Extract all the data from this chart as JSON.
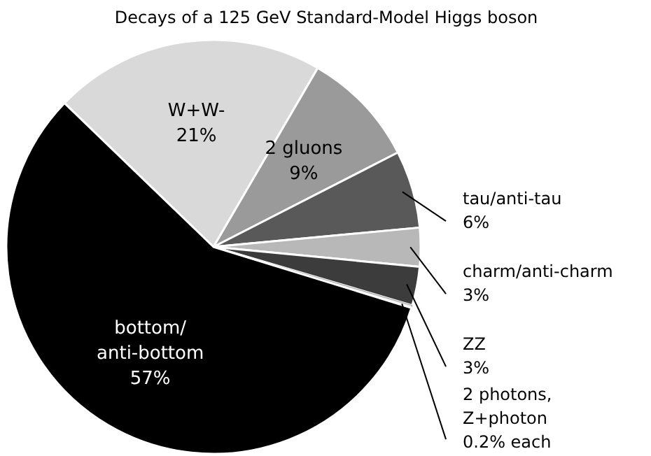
{
  "chart_data": {
    "type": "pie",
    "title": "Decays of a 125 GeV Standard-Model Higgs boson",
    "categories": [
      "W+W-",
      "2 gluons",
      "tau/anti-tau",
      "charm/anti-charm",
      "ZZ",
      "2 photons,\nZ+photon",
      "bottom/\nanti-bottom"
    ],
    "values": [
      21,
      9,
      6,
      3,
      3,
      0.2,
      57
    ],
    "value_labels": [
      "21%",
      "9%",
      "6%",
      "3%",
      "3%",
      "0.2% each",
      "57%"
    ],
    "colors": [
      "#d9d9d9",
      "#9a9a9a",
      "#595959",
      "#b8b8b8",
      "#3c3c3c",
      "#e6e6e6",
      "#000000"
    ]
  }
}
